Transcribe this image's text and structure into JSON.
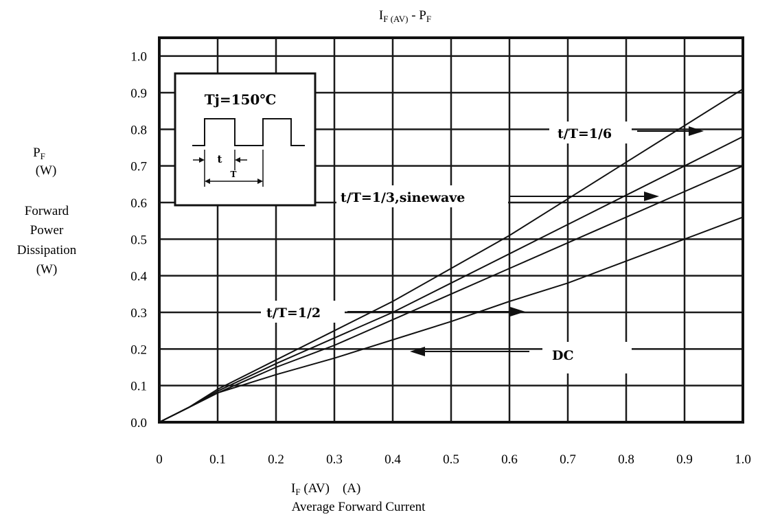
{
  "chart_data": {
    "type": "line",
    "title": "I",
    "title_sub": "F (AV)",
    "title_mid": " - P",
    "title_sub2": "F",
    "ylabel": {
      "symbol": "P",
      "symbol_sub": "F",
      "unit": "(W)",
      "name_lines": [
        "Forward",
        "Power",
        "Dissipation"
      ],
      "name_unit": "(W)"
    },
    "xlabel": {
      "symbol": "I",
      "symbol_sub": "F",
      "symbol_rest": " (AV)    (A)",
      "name": "Average Forward Current"
    },
    "xlim": [
      0,
      1.0
    ],
    "ylim": [
      0,
      1.05
    ],
    "x_ticks": [
      "0",
      "0.1",
      "0.2",
      "0.3",
      "0.4",
      "0.5",
      "0.6",
      "0.7",
      "0.8",
      "0.9",
      "1.0"
    ],
    "y_ticks": [
      "0.0",
      "0.1",
      "0.2",
      "0.3",
      "0.4",
      "0.5",
      "0.6",
      "0.7",
      "0.8",
      "0.9",
      "1.0"
    ],
    "grid": true,
    "series": [
      {
        "name": "t/T=1/6",
        "x": [
          0,
          0.05,
          0.1,
          0.2,
          0.3,
          0.4,
          0.5,
          0.6,
          0.7,
          0.8,
          0.9,
          1.0
        ],
        "y": [
          0,
          0.04,
          0.09,
          0.17,
          0.25,
          0.33,
          0.42,
          0.51,
          0.61,
          0.71,
          0.81,
          0.91
        ]
      },
      {
        "name": "t/T=1/3,sinewave",
        "x": [
          0,
          0.05,
          0.1,
          0.2,
          0.3,
          0.4,
          0.5,
          0.6,
          0.7,
          0.8,
          0.9,
          1.0
        ],
        "y": [
          0,
          0.04,
          0.085,
          0.16,
          0.23,
          0.3,
          0.38,
          0.46,
          0.54,
          0.62,
          0.7,
          0.78
        ]
      },
      {
        "name": "t/T=1/2",
        "x": [
          0,
          0.05,
          0.1,
          0.2,
          0.3,
          0.4,
          0.5,
          0.6,
          0.7,
          0.8,
          0.9,
          1.0
        ],
        "y": [
          0,
          0.04,
          0.08,
          0.15,
          0.21,
          0.28,
          0.35,
          0.42,
          0.49,
          0.56,
          0.63,
          0.7
        ]
      },
      {
        "name": "DC",
        "x": [
          0,
          0.05,
          0.1,
          0.2,
          0.3,
          0.4,
          0.5,
          0.6,
          0.7,
          0.8,
          0.9,
          1.0
        ],
        "y": [
          0,
          0.04,
          0.08,
          0.13,
          0.175,
          0.225,
          0.275,
          0.33,
          0.38,
          0.44,
          0.5,
          0.56
        ]
      }
    ],
    "annotations": {
      "inset_temp": "Tj=150℃",
      "inset_t": "t",
      "inset_T": "T",
      "label_1_6": "t/T=1/6",
      "label_1_3": "t/T=1/3,sinewave",
      "label_1_2": "t/T=1/2",
      "label_dc": "DC"
    }
  }
}
